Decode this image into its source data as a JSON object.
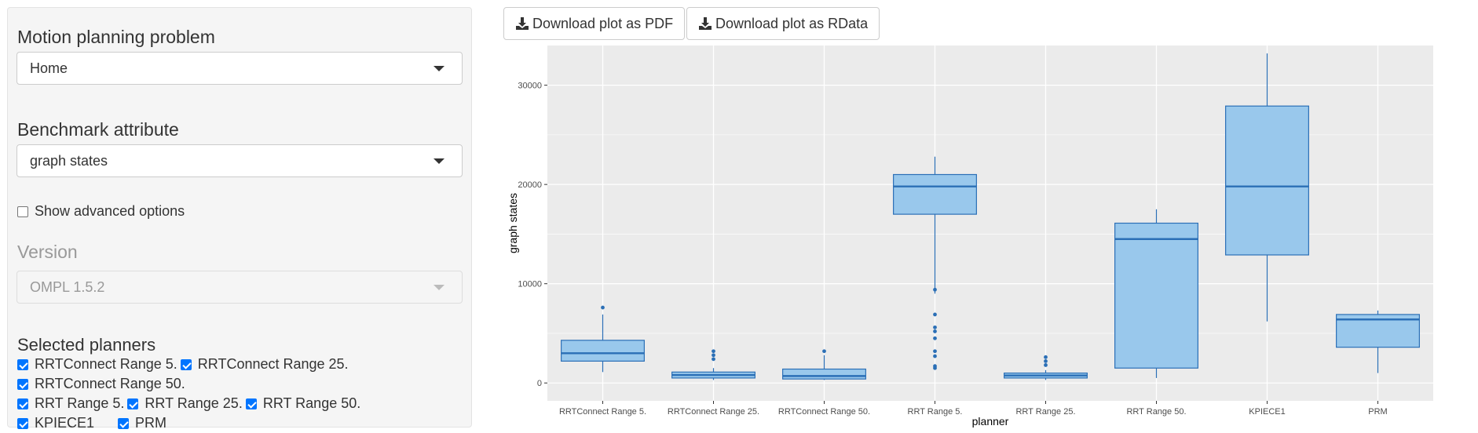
{
  "sidebar": {
    "problem_label": "Motion planning problem",
    "problem_value": "Home",
    "attribute_label": "Benchmark attribute",
    "attribute_value": "graph states",
    "advanced_label": "Show advanced options",
    "version_label": "Version",
    "version_value": "OMPL 1.5.2",
    "planners_label": "Selected planners",
    "planners": [
      {
        "label": "RRTConnect Range 5.",
        "checked": true
      },
      {
        "label": "RRTConnect Range 25.",
        "checked": true
      },
      {
        "label": "RRTConnect Range 50.",
        "checked": true
      },
      {
        "label": "RRT Range 5.",
        "checked": true
      },
      {
        "label": "RRT Range 25.",
        "checked": true
      },
      {
        "label": "RRT Range 50.",
        "checked": true
      },
      {
        "label": "KPIECE1",
        "checked": true
      },
      {
        "label": "PRM",
        "checked": true
      }
    ]
  },
  "toolbar": {
    "pdf_label": "Download plot as PDF",
    "rdata_label": "Download plot as RData",
    "download_icon": "download-icon"
  },
  "colors": {
    "panel_bg": "#ebebeb",
    "grid": "#ffffff",
    "box_fill": "#99c8ec",
    "box_stroke": "#2b6fb6",
    "checkbox": "#0075ff"
  },
  "chart_data": {
    "type": "boxplot",
    "xlabel": "planner",
    "ylabel": "graph states",
    "ylim": [
      -1800,
      34000
    ],
    "yticks": [
      0,
      10000,
      20000,
      30000
    ],
    "ytick_labels": [
      "0",
      "10000",
      "20000",
      "30000"
    ],
    "grid": true,
    "categories": [
      "RRTConnect Range 5.",
      "RRTConnect Range 25.",
      "RRTConnect Range 50.",
      "RRT Range 5.",
      "RRT Range 25.",
      "RRT Range 50.",
      "KPIECE1",
      "PRM"
    ],
    "boxes": [
      {
        "min": 1100,
        "q1": 2200,
        "median": 3000,
        "q3": 4300,
        "max": 6900,
        "outliers": [
          7600
        ]
      },
      {
        "min": 300,
        "q1": 500,
        "median": 800,
        "q3": 1100,
        "max": 1500,
        "outliers": [
          2400,
          2800,
          3200
        ]
      },
      {
        "min": 300,
        "q1": 400,
        "median": 700,
        "q3": 1400,
        "max": 2800,
        "outliers": [
          3200
        ]
      },
      {
        "min": 9000,
        "q1": 17000,
        "median": 19800,
        "q3": 21000,
        "max": 22800,
        "outliers": [
          1500,
          1700,
          2700,
          3200,
          4500,
          5200,
          5600,
          6900,
          9400
        ]
      },
      {
        "min": 300,
        "q1": 500,
        "median": 750,
        "q3": 1000,
        "max": 1300,
        "outliers": [
          1800,
          2200,
          2600
        ]
      },
      {
        "min": 500,
        "q1": 1500,
        "median": 14500,
        "q3": 16100,
        "max": 17500,
        "outliers": []
      },
      {
        "min": 6200,
        "q1": 12900,
        "median": 19800,
        "q3": 27900,
        "max": 33200,
        "outliers": []
      },
      {
        "min": 1000,
        "q1": 3600,
        "median": 6400,
        "q3": 6900,
        "max": 7300,
        "outliers": []
      }
    ]
  }
}
